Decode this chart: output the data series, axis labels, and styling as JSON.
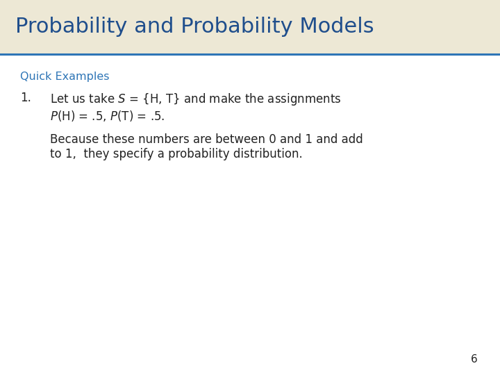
{
  "title": "Probability and Probability Models",
  "title_color": "#1F4E8C",
  "title_bg_color": "#EDE8D5",
  "title_fontsize": 22,
  "header_line_color": "#2E75B6",
  "bg_color": "#FFFFFF",
  "quick_examples_label": "Quick Examples",
  "quick_examples_color": "#2E75B6",
  "quick_examples_fontsize": 11.5,
  "item1_number": "1.",
  "item1_line1": "Let us take $S$ = {H, T} and make the assignments",
  "item1_line2": "$P$(H) = .5, $P$(T) = .5.",
  "item1_color": "#222222",
  "item1_fontsize": 12,
  "body_line1": "Because these numbers are between 0 and 1 and add",
  "body_line2": "to 1,  they specify a probability distribution.",
  "body_color": "#222222",
  "body_fontsize": 12,
  "slide_number": "6",
  "slide_number_color": "#222222",
  "slide_number_fontsize": 11
}
